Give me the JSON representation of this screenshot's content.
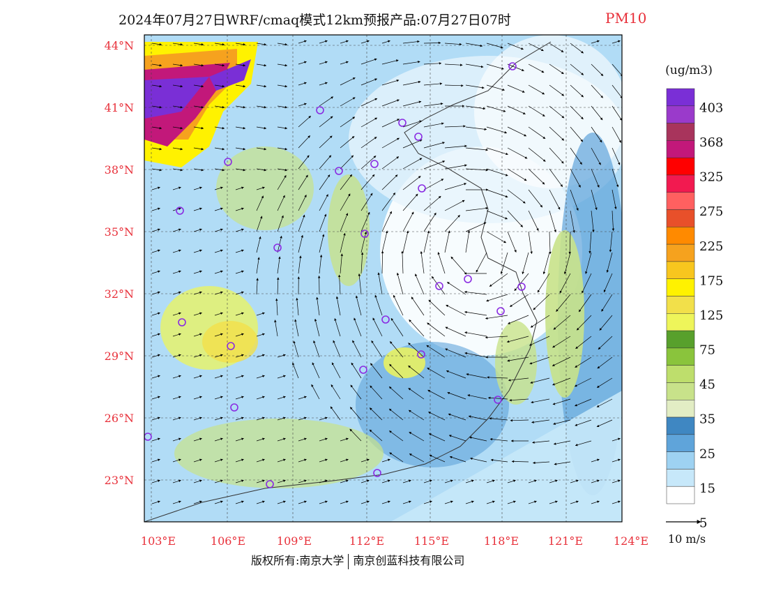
{
  "title": {
    "main": "2024年07月27日WRF/cmaq模式12km预报产品:07月27日07时",
    "pollutant": "PM10"
  },
  "map": {
    "lat_labels": [
      "44°N",
      "41°N",
      "38°N",
      "35°N",
      "32°N",
      "29°N",
      "26°N",
      "23°N"
    ],
    "lon_labels": [
      "103°E",
      "106°E",
      "109°E",
      "112°E",
      "115°E",
      "118°E",
      "121°E",
      "124°E"
    ],
    "label_color": "#e8303a",
    "typhoon_center": "offshore east of Jiangsu / Yellow Sea, strong cyclonic wind field"
  },
  "legend": {
    "unit": "(ug/m3)",
    "labels": [
      "403",
      "368",
      "325",
      "275",
      "225",
      "175",
      "125",
      "75",
      "45",
      "35",
      "25",
      "15",
      "5"
    ],
    "colors": [
      "#7a2fd6",
      "#9a3acb",
      "#a8345c",
      "#c2187a",
      "#ff0000",
      "#f21a50",
      "#ff6060",
      "#e8502a",
      "#ff8a00",
      "#f6a21e",
      "#f8c61e",
      "#fff200",
      "#f2e04a",
      "#eef55a",
      "#58a02c",
      "#8ac43c",
      "#bede6c",
      "#c8e28a",
      "#e2edc4",
      "#3f87c2",
      "#5fa4da",
      "#9ed2f2",
      "#c7e8fa",
      "#ffffff"
    ]
  },
  "wind_scale_label": "10 m/s",
  "footer": {
    "copyright": "版权所有:南京大学",
    "company": "南京创蓝科技有限公司"
  }
}
